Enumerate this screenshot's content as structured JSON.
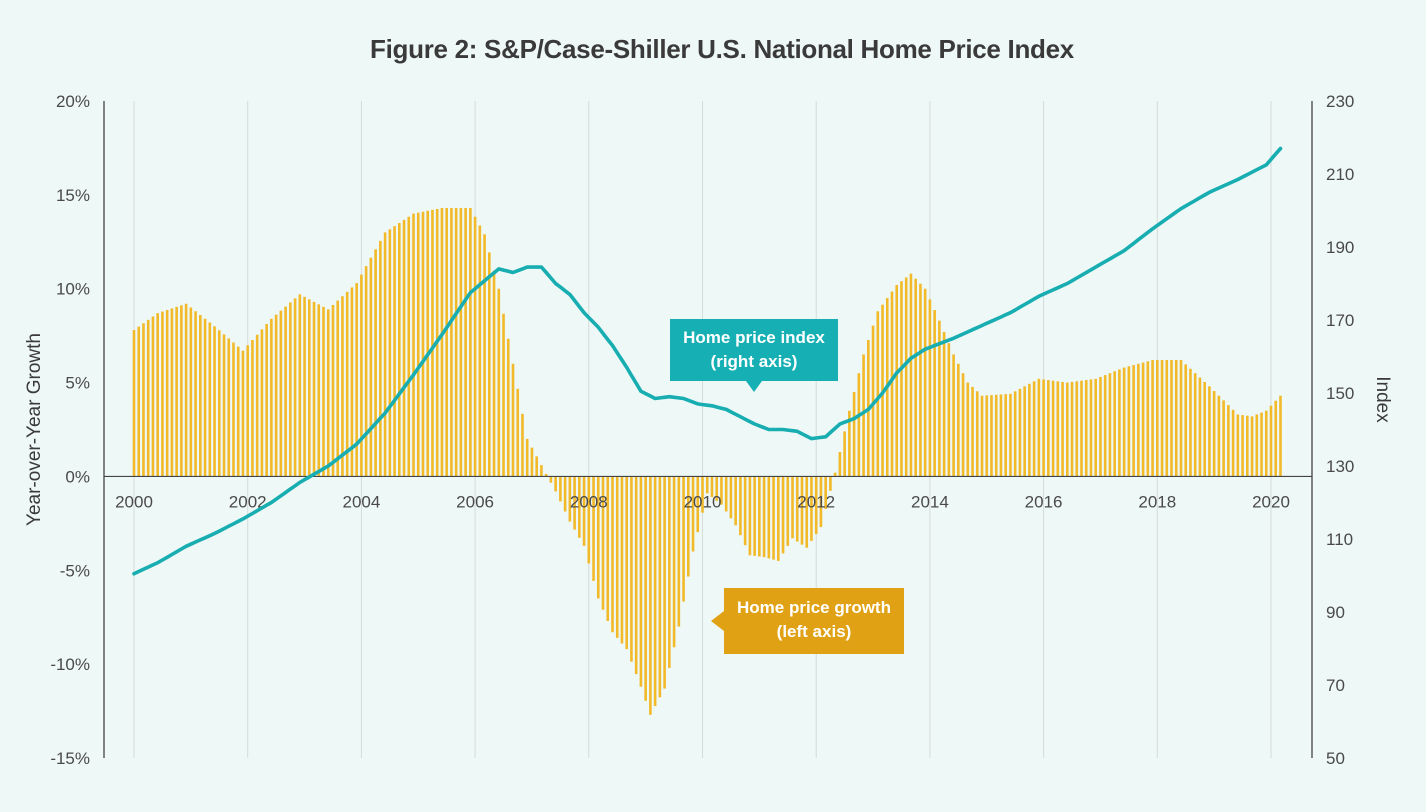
{
  "title": "Figure 2: S&P/Case-Shiller U.S. National Home Price Index",
  "left_axis": {
    "label": "Year-over-Year Growth",
    "ticks": [
      "20%",
      "15%",
      "10%",
      "5%",
      "0%",
      "-5%",
      "-10%",
      "-15%"
    ],
    "range": [
      -15,
      20
    ]
  },
  "right_axis": {
    "label": "Index",
    "ticks": [
      "230",
      "210",
      "190",
      "170",
      "150",
      "130",
      "110",
      "90",
      "70",
      "50"
    ],
    "range": [
      50,
      230
    ]
  },
  "x_axis": {
    "ticks": [
      "2000",
      "2002",
      "2004",
      "2006",
      "2008",
      "2010",
      "2012",
      "2014",
      "2016",
      "2018",
      "2020"
    ]
  },
  "callouts": {
    "index": "Home price index\n(right axis)",
    "growth": "Home price growth\n(left axis)"
  },
  "colors": {
    "background": "#eef8f6",
    "bars": "#f2b928",
    "line": "#17adb1",
    "gridline": "#d4dcda",
    "axis": "#444444"
  },
  "chart_data": {
    "type": "bar+line",
    "x_range": [
      "2000-01",
      "2020-03"
    ],
    "grid": "vertical gridlines at each year",
    "series": [
      {
        "name": "Home price growth",
        "type": "bar",
        "axis": "left",
        "unit": "% year-over-year",
        "points": [
          [
            "2000-01",
            7.8
          ],
          [
            "2000-06",
            8.7
          ],
          [
            "2000-12",
            9.2
          ],
          [
            "2001-06",
            8.0
          ],
          [
            "2001-12",
            6.7
          ],
          [
            "2002-06",
            8.4
          ],
          [
            "2002-12",
            9.7
          ],
          [
            "2003-06",
            8.9
          ],
          [
            "2003-12",
            10.3
          ],
          [
            "2004-06",
            13.0
          ],
          [
            "2004-12",
            14.0
          ],
          [
            "2005-06",
            14.3
          ],
          [
            "2005-12",
            14.3
          ],
          [
            "2006-03",
            12.9
          ],
          [
            "2006-06",
            10.0
          ],
          [
            "2006-09",
            6.0
          ],
          [
            "2006-12",
            2.0
          ],
          [
            "2007-03",
            0.6
          ],
          [
            "2007-06",
            -0.8
          ],
          [
            "2007-09",
            -2.4
          ],
          [
            "2007-12",
            -3.7
          ],
          [
            "2008-03",
            -6.5
          ],
          [
            "2008-06",
            -8.3
          ],
          [
            "2008-09",
            -9.2
          ],
          [
            "2008-12",
            -11.2
          ],
          [
            "2009-02",
            -12.7
          ],
          [
            "2009-05",
            -11.3
          ],
          [
            "2009-08",
            -8.0
          ],
          [
            "2009-11",
            -4.0
          ],
          [
            "2010-02",
            -0.9
          ],
          [
            "2010-05",
            -1.5
          ],
          [
            "2010-08",
            -2.6
          ],
          [
            "2010-11",
            -4.2
          ],
          [
            "2011-02",
            -4.3
          ],
          [
            "2011-05",
            -4.5
          ],
          [
            "2011-08",
            -3.3
          ],
          [
            "2011-11",
            -3.8
          ],
          [
            "2012-02",
            -2.7
          ],
          [
            "2012-05",
            0.2
          ],
          [
            "2012-08",
            3.5
          ],
          [
            "2012-11",
            6.5
          ],
          [
            "2013-02",
            8.8
          ],
          [
            "2013-06",
            10.2
          ],
          [
            "2013-09",
            10.8
          ],
          [
            "2013-12",
            10.0
          ],
          [
            "2014-03",
            8.3
          ],
          [
            "2014-06",
            6.5
          ],
          [
            "2014-09",
            5.0
          ],
          [
            "2014-12",
            4.3
          ],
          [
            "2015-06",
            4.4
          ],
          [
            "2015-12",
            5.2
          ],
          [
            "2016-06",
            5.0
          ],
          [
            "2016-12",
            5.2
          ],
          [
            "2017-06",
            5.8
          ],
          [
            "2017-12",
            6.2
          ],
          [
            "2018-06",
            6.2
          ],
          [
            "2018-12",
            4.8
          ],
          [
            "2019-06",
            3.3
          ],
          [
            "2019-09",
            3.2
          ],
          [
            "2019-12",
            3.5
          ],
          [
            "2020-03",
            4.3
          ]
        ]
      },
      {
        "name": "Home price index",
        "type": "line",
        "axis": "right",
        "unit": "index",
        "points": [
          [
            "2000-01",
            100.5
          ],
          [
            "2000-06",
            103.5
          ],
          [
            "2000-12",
            108.0
          ],
          [
            "2001-06",
            111.5
          ],
          [
            "2001-12",
            115.5
          ],
          [
            "2002-06",
            120.0
          ],
          [
            "2002-12",
            125.5
          ],
          [
            "2003-06",
            130.0
          ],
          [
            "2003-12",
            136.0
          ],
          [
            "2004-06",
            144.5
          ],
          [
            "2004-12",
            155.0
          ],
          [
            "2005-06",
            166.0
          ],
          [
            "2005-12",
            177.5
          ],
          [
            "2006-06",
            184.0
          ],
          [
            "2006-09",
            183.0
          ],
          [
            "2006-12",
            184.5
          ],
          [
            "2007-03",
            184.5
          ],
          [
            "2007-06",
            180.0
          ],
          [
            "2007-09",
            177.0
          ],
          [
            "2007-12",
            172.0
          ],
          [
            "2008-03",
            168.0
          ],
          [
            "2008-06",
            163.0
          ],
          [
            "2008-09",
            157.0
          ],
          [
            "2008-12",
            150.5
          ],
          [
            "2009-03",
            148.5
          ],
          [
            "2009-06",
            149.0
          ],
          [
            "2009-09",
            148.5
          ],
          [
            "2009-12",
            147.0
          ],
          [
            "2010-03",
            146.5
          ],
          [
            "2010-06",
            145.5
          ],
          [
            "2010-09",
            143.5
          ],
          [
            "2010-12",
            141.5
          ],
          [
            "2011-03",
            140.0
          ],
          [
            "2011-06",
            140.0
          ],
          [
            "2011-09",
            139.5
          ],
          [
            "2011-12",
            137.5
          ],
          [
            "2012-03",
            138.0
          ],
          [
            "2012-06",
            141.5
          ],
          [
            "2012-09",
            143.0
          ],
          [
            "2012-12",
            145.5
          ],
          [
            "2013-03",
            150.0
          ],
          [
            "2013-06",
            155.5
          ],
          [
            "2013-09",
            159.5
          ],
          [
            "2013-12",
            162.0
          ],
          [
            "2014-06",
            165.0
          ],
          [
            "2014-12",
            168.5
          ],
          [
            "2015-06",
            172.0
          ],
          [
            "2015-12",
            176.5
          ],
          [
            "2016-06",
            180.0
          ],
          [
            "2016-12",
            184.5
          ],
          [
            "2017-06",
            189.0
          ],
          [
            "2017-12",
            195.0
          ],
          [
            "2018-06",
            200.5
          ],
          [
            "2018-12",
            205.0
          ],
          [
            "2019-06",
            208.5
          ],
          [
            "2019-12",
            212.5
          ],
          [
            "2020-03",
            217.0
          ]
        ]
      }
    ]
  }
}
